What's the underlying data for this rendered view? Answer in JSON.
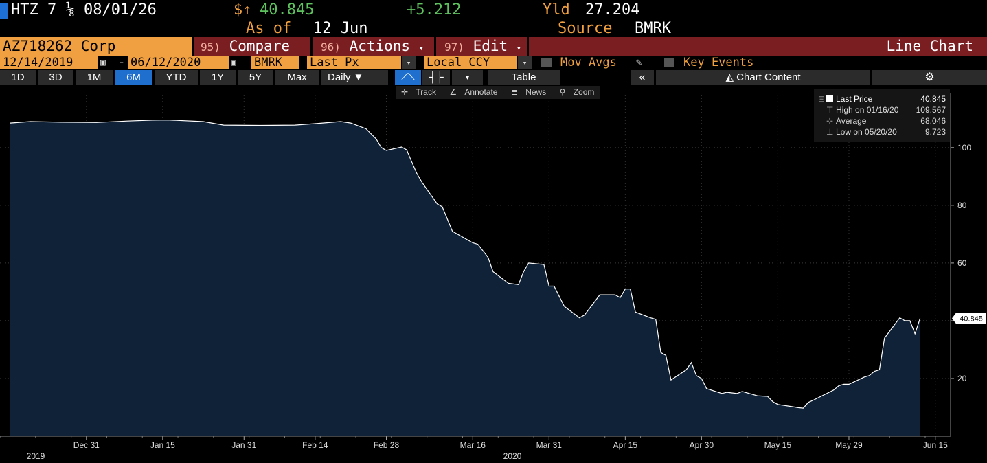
{
  "header": {
    "ticker": "HTZ 7 ⅛ 08/01/26",
    "price_prefix": "$↑",
    "price": "40.845",
    "change": "+5.212",
    "yld_label": "Yld",
    "yld_value": "27.204",
    "as_of_label": "As of",
    "as_of_value": "12 Jun",
    "source_label": "Source",
    "source_value": "BMRK"
  },
  "menu": {
    "security": "AZ718262 Corp",
    "compare_num": "95)",
    "compare": "Compare",
    "actions_num": "96)",
    "actions": "Actions",
    "edit_num": "97)",
    "edit": "Edit",
    "view": "Line Chart"
  },
  "controls": {
    "start_date": "12/14/2019",
    "end_date": "06/12/2020",
    "dash": "-",
    "source": "BMRK",
    "field": "Last Px",
    "currency": "Local CCY",
    "mov_avgs": "Mov Avgs",
    "key_events": "Key Events"
  },
  "ranges": [
    "1D",
    "3D",
    "1M",
    "6M",
    "YTD",
    "1Y",
    "5Y",
    "Max"
  ],
  "active_range": "6M",
  "periodicity": "Daily",
  "table_label": "Table",
  "chart_content_label": "Chart Content",
  "tools": [
    "Track",
    "Annotate",
    "News",
    "Zoom"
  ],
  "legend": {
    "last_label": "Last Price",
    "last_value": "40.845",
    "high_label": "High on 01/16/20",
    "high_value": "109.567",
    "avg_label": "Average",
    "avg_value": "68.046",
    "low_label": "Low on 05/20/20",
    "low_value": "9.723"
  },
  "colors": {
    "accent_orange": "#f0a040",
    "maroon": "#7a1e22",
    "area_fill": "#0f2238",
    "line": "#ffffff",
    "price_green": "#5ec25e",
    "active_blue": "#1f6fcf"
  },
  "chart_data": {
    "type": "area",
    "series": [
      {
        "x": [
          "2019-12-16",
          "2019-12-20",
          "2019-12-26",
          "2020-01-02",
          "2020-01-08",
          "2020-01-13",
          "2020-01-16",
          "2020-01-23",
          "2020-01-27",
          "2020-02-03",
          "2020-02-10",
          "2020-02-14",
          "2020-02-19",
          "2020-02-21",
          "2020-02-24",
          "2020-02-26",
          "2020-02-27",
          "2020-02-28",
          "2020-03-02",
          "2020-03-03",
          "2020-03-04",
          "2020-03-05",
          "2020-03-06",
          "2020-03-09",
          "2020-03-10",
          "2020-03-12",
          "2020-03-13",
          "2020-03-16",
          "2020-03-17",
          "2020-03-19",
          "2020-03-20",
          "2020-03-23",
          "2020-03-25",
          "2020-03-26",
          "2020-03-27",
          "2020-03-30",
          "2020-03-31",
          "2020-04-01",
          "2020-04-02",
          "2020-04-03",
          "2020-04-06",
          "2020-04-07",
          "2020-04-10",
          "2020-04-13",
          "2020-04-14",
          "2020-04-15",
          "2020-04-16",
          "2020-04-17",
          "2020-04-20",
          "2020-04-21",
          "2020-04-22",
          "2020-04-23",
          "2020-04-24",
          "2020-04-27",
          "2020-04-28",
          "2020-04-29",
          "2020-04-30",
          "2020-05-01",
          "2020-05-04",
          "2020-05-05",
          "2020-05-06",
          "2020-05-07",
          "2020-05-08",
          "2020-05-11",
          "2020-05-12",
          "2020-05-13",
          "2020-05-14",
          "2020-05-15",
          "2020-05-18",
          "2020-05-19",
          "2020-05-20",
          "2020-05-21",
          "2020-05-22",
          "2020-05-26",
          "2020-05-27",
          "2020-05-28",
          "2020-05-29",
          "2020-06-01",
          "2020-06-02",
          "2020-06-03",
          "2020-06-04",
          "2020-06-05",
          "2020-06-08",
          "2020-06-09",
          "2020-06-10",
          "2020-06-11",
          "2020-06-12"
        ],
        "y": [
          108.5,
          109,
          108.8,
          108.7,
          109.2,
          109.5,
          109.567,
          109,
          107.8,
          107.7,
          107.8,
          108.3,
          109,
          108.5,
          106.5,
          103,
          100,
          99,
          100.2,
          99.2,
          95,
          91,
          88,
          80.5,
          79.5,
          71,
          70,
          67,
          66.5,
          62,
          57,
          53,
          52.5,
          57,
          60,
          59.5,
          52,
          52,
          48.5,
          45,
          41,
          42,
          49,
          49,
          48,
          51,
          51,
          43,
          41,
          40.5,
          29,
          28,
          19.5,
          23,
          25.5,
          21,
          20,
          16.5,
          14.8,
          15.2,
          15,
          14.8,
          15.5,
          14,
          13.9,
          13.8,
          12,
          11,
          10.2,
          9.9,
          9.723,
          11.7,
          12.5,
          16,
          17.5,
          18,
          18,
          20.5,
          21,
          22.5,
          23,
          34,
          41,
          40,
          40,
          35.5,
          40.845
        ]
      }
    ],
    "x_ticks": [
      "Dec 31",
      "Jan 15",
      "Jan 31",
      "Feb 14",
      "Feb 28",
      "Mar 16",
      "Mar 31",
      "Apr 15",
      "Apr 30",
      "May 15",
      "May 29",
      "Jun 15"
    ],
    "year_labels": [
      "2019",
      "2020"
    ],
    "y_ticks": [
      20,
      40,
      60,
      80,
      100
    ],
    "ylim": [
      0,
      119
    ],
    "last_value_label": "40.845",
    "grid": true
  }
}
